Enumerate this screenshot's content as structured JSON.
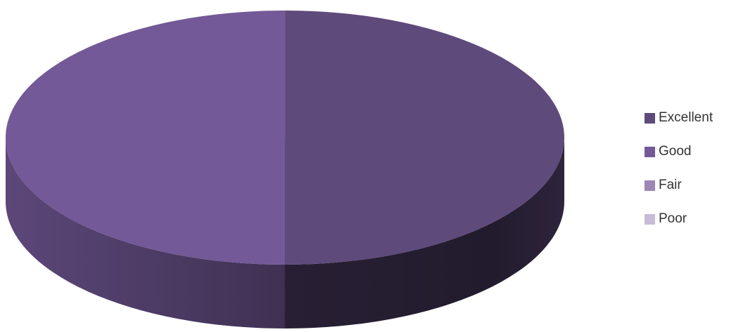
{
  "chart_data": {
    "type": "pie",
    "categories": [
      "Excellent",
      "Good",
      "Fair",
      "Poor"
    ],
    "values": [
      50,
      50,
      0,
      0
    ],
    "legend_position": "right",
    "colors": [
      "#5f4a7c",
      "#735997",
      "#9d87b6",
      "#c7bcd6"
    ],
    "style": "3d"
  }
}
